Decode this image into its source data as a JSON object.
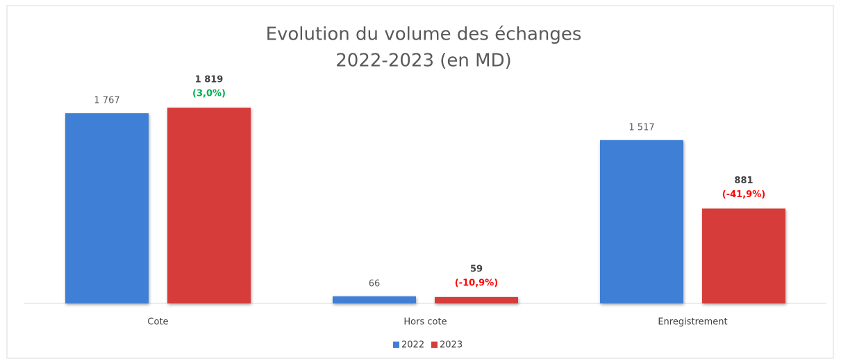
{
  "chart_data": {
    "type": "bar",
    "title": "Evolution du volume des échanges",
    "subtitle": "2022-2023 (en MD)",
    "categories": [
      "Cote",
      "Hors cote",
      "Enregistrement"
    ],
    "series": [
      {
        "name": "2022",
        "color": "#3f7fd6",
        "values": [
          1767,
          66,
          1517
        ],
        "value_labels": [
          "1 767",
          "66",
          "1 517"
        ]
      },
      {
        "name": "2023",
        "color": "#d63c3a",
        "values": [
          1819,
          59,
          881
        ],
        "value_labels": [
          "1 819",
          "59",
          "881"
        ],
        "change_labels": [
          "(3,0%)",
          "(-10,9%)",
          "(-41,9%)"
        ],
        "change_label_colors": [
          "#00b050",
          "#ff0000",
          "#ff0000"
        ]
      }
    ],
    "ylim": [
      0,
      2000
    ],
    "legend": "bottom"
  }
}
